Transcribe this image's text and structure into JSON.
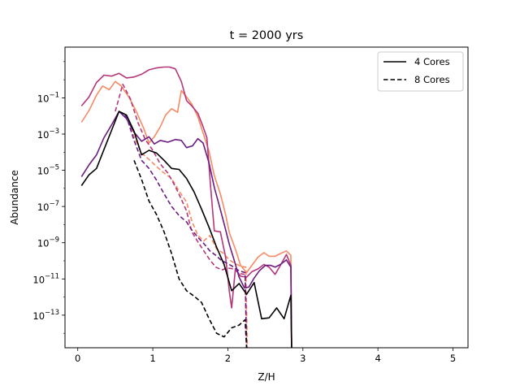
{
  "chart_data": {
    "type": "line",
    "title": "t = 2000 yrs",
    "xlabel": "Z/H",
    "ylabel": "Abundance",
    "xlim": [
      -0.17,
      5.2
    ],
    "ylim_log10": [
      -14.8,
      1.8
    ],
    "yscale": "log",
    "x_ticks": [
      {
        "value": 0,
        "label": "0"
      },
      {
        "value": 1,
        "label": "1"
      },
      {
        "value": 2,
        "label": "2"
      },
      {
        "value": 3,
        "label": "3"
      },
      {
        "value": 4,
        "label": "4"
      },
      {
        "value": 5,
        "label": "5"
      }
    ],
    "y_ticks": [
      {
        "exp": -1,
        "base": "10",
        "sup": "−1"
      },
      {
        "exp": -3,
        "base": "10",
        "sup": "−3"
      },
      {
        "exp": -5,
        "base": "10",
        "sup": "−5"
      },
      {
        "exp": -7,
        "base": "10",
        "sup": "−7"
      },
      {
        "exp": -9,
        "base": "10",
        "sup": "−9"
      },
      {
        "exp": -11,
        "base": "10",
        "sup": "−11"
      },
      {
        "exp": -13,
        "base": "10",
        "sup": "−13"
      }
    ],
    "grid": false,
    "legend": {
      "position": "top-right",
      "entries": [
        {
          "label": "4 Cores",
          "style": "solid",
          "color": "#000000"
        },
        {
          "label": "8 Cores",
          "style": "dashed",
          "color": "#000000"
        }
      ]
    },
    "series": [
      {
        "color": "#f78a64",
        "style": "solid",
        "points": [
          [
            0.05,
            -2.35
          ],
          [
            0.15,
            -1.7
          ],
          [
            0.25,
            -0.85
          ],
          [
            0.33,
            -0.35
          ],
          [
            0.42,
            -0.55
          ],
          [
            0.5,
            -0.1
          ],
          [
            0.58,
            -0.35
          ],
          [
            0.68,
            -0.95
          ],
          [
            0.78,
            -1.75
          ],
          [
            0.88,
            -2.7
          ],
          [
            0.95,
            -3.5
          ],
          [
            1.02,
            -3.15
          ],
          [
            1.1,
            -2.6
          ],
          [
            1.17,
            -1.95
          ],
          [
            1.25,
            -1.6
          ],
          [
            1.33,
            -1.8
          ],
          [
            1.38,
            -0.6
          ],
          [
            1.45,
            -0.95
          ],
          [
            1.52,
            -1.35
          ],
          [
            1.6,
            -2.05
          ],
          [
            1.67,
            -2.95
          ],
          [
            1.75,
            -3.95
          ],
          [
            1.82,
            -5.3
          ],
          [
            1.9,
            -6.3
          ],
          [
            1.97,
            -7.45
          ],
          [
            2.02,
            -8.45
          ],
          [
            2.1,
            -9.35
          ],
          [
            2.17,
            -10.25
          ],
          [
            2.25,
            -10.65
          ],
          [
            2.32,
            -10.25
          ],
          [
            2.4,
            -9.8
          ],
          [
            2.48,
            -9.55
          ],
          [
            2.55,
            -9.75
          ],
          [
            2.63,
            -9.75
          ],
          [
            2.7,
            -9.6
          ],
          [
            2.78,
            -9.45
          ],
          [
            2.84,
            -9.7
          ],
          [
            2.85,
            -14.8
          ]
        ]
      },
      {
        "color": "#f78a64",
        "style": "dashed",
        "points": [
          [
            0.55,
            -1.75
          ],
          [
            0.65,
            -2.05
          ],
          [
            0.75,
            -3.15
          ],
          [
            0.85,
            -4.05
          ],
          [
            0.95,
            -4.4
          ],
          [
            1.05,
            -4.8
          ],
          [
            1.15,
            -5.15
          ],
          [
            1.25,
            -5.45
          ],
          [
            1.35,
            -6.15
          ],
          [
            1.45,
            -6.75
          ],
          [
            1.52,
            -7.8
          ],
          [
            1.6,
            -8.6
          ],
          [
            1.68,
            -8.9
          ],
          [
            1.76,
            -8.6
          ],
          [
            1.85,
            -9.35
          ],
          [
            1.93,
            -9.55
          ],
          [
            2.02,
            -9.95
          ],
          [
            2.1,
            -10.15
          ],
          [
            2.17,
            -10.3
          ],
          [
            2.24,
            -10.35
          ],
          [
            2.26,
            -14.8
          ]
        ]
      },
      {
        "color": "#b63679",
        "style": "solid",
        "points": [
          [
            0.05,
            -1.45
          ],
          [
            0.15,
            -0.95
          ],
          [
            0.25,
            -0.15
          ],
          [
            0.35,
            0.25
          ],
          [
            0.45,
            0.2
          ],
          [
            0.55,
            0.35
          ],
          [
            0.65,
            0.1
          ],
          [
            0.75,
            0.15
          ],
          [
            0.85,
            0.3
          ],
          [
            0.95,
            0.55
          ],
          [
            1.05,
            0.65
          ],
          [
            1.15,
            0.7
          ],
          [
            1.22,
            0.7
          ],
          [
            1.3,
            0.6
          ],
          [
            1.38,
            -0.1
          ],
          [
            1.45,
            -1.15
          ],
          [
            1.52,
            -1.45
          ],
          [
            1.6,
            -1.85
          ],
          [
            1.67,
            -2.6
          ],
          [
            1.72,
            -3.2
          ],
          [
            1.77,
            -5.9
          ],
          [
            1.82,
            -8.35
          ],
          [
            1.9,
            -8.4
          ],
          [
            1.97,
            -9.8
          ],
          [
            2.02,
            -11.7
          ],
          [
            2.05,
            -12.6
          ],
          [
            2.1,
            -10.45
          ],
          [
            2.17,
            -10.85
          ],
          [
            2.25,
            -10.9
          ],
          [
            2.32,
            -10.6
          ],
          [
            2.4,
            -10.45
          ],
          [
            2.48,
            -10.2
          ],
          [
            2.55,
            -10.35
          ],
          [
            2.63,
            -10.75
          ],
          [
            2.7,
            -10.25
          ],
          [
            2.78,
            -9.65
          ],
          [
            2.84,
            -10.25
          ],
          [
            2.85,
            -14.8
          ]
        ]
      },
      {
        "color": "#b63679",
        "style": "dashed",
        "points": [
          [
            0.5,
            -1.75
          ],
          [
            0.6,
            -0.25
          ],
          [
            0.7,
            -1.05
          ],
          [
            0.8,
            -2.35
          ],
          [
            0.9,
            -3.3
          ],
          [
            1.0,
            -3.9
          ],
          [
            1.1,
            -4.65
          ],
          [
            1.2,
            -5.15
          ],
          [
            1.3,
            -5.9
          ],
          [
            1.38,
            -6.6
          ],
          [
            1.45,
            -7.25
          ],
          [
            1.52,
            -8.4
          ],
          [
            1.6,
            -8.95
          ],
          [
            1.68,
            -9.45
          ],
          [
            1.76,
            -9.95
          ],
          [
            1.84,
            -10.35
          ],
          [
            1.92,
            -10.5
          ],
          [
            2.0,
            -10.4
          ],
          [
            2.08,
            -10.45
          ],
          [
            2.15,
            -10.7
          ],
          [
            2.23,
            -10.75
          ],
          [
            2.25,
            -14.8
          ]
        ]
      },
      {
        "color": "#6a1c81",
        "style": "solid",
        "points": [
          [
            0.05,
            -5.35
          ],
          [
            0.15,
            -4.7
          ],
          [
            0.25,
            -4.15
          ],
          [
            0.35,
            -3.2
          ],
          [
            0.45,
            -2.5
          ],
          [
            0.55,
            -1.75
          ],
          [
            0.65,
            -2.15
          ],
          [
            0.75,
            -2.9
          ],
          [
            0.85,
            -3.4
          ],
          [
            0.95,
            -3.15
          ],
          [
            1.02,
            -3.55
          ],
          [
            1.1,
            -3.35
          ],
          [
            1.2,
            -3.45
          ],
          [
            1.3,
            -3.3
          ],
          [
            1.38,
            -3.35
          ],
          [
            1.45,
            -3.75
          ],
          [
            1.53,
            -3.65
          ],
          [
            1.6,
            -3.25
          ],
          [
            1.67,
            -3.5
          ],
          [
            1.75,
            -4.6
          ],
          [
            1.82,
            -5.95
          ],
          [
            1.88,
            -6.85
          ],
          [
            1.95,
            -7.95
          ],
          [
            2.02,
            -9.1
          ],
          [
            2.08,
            -9.9
          ],
          [
            2.15,
            -10.9
          ],
          [
            2.22,
            -11.5
          ],
          [
            2.28,
            -11.45
          ],
          [
            2.35,
            -10.95
          ],
          [
            2.42,
            -10.55
          ],
          [
            2.5,
            -10.25
          ],
          [
            2.57,
            -10.25
          ],
          [
            2.63,
            -10.35
          ],
          [
            2.7,
            -10.2
          ],
          [
            2.78,
            -9.95
          ],
          [
            2.84,
            -10.35
          ],
          [
            2.85,
            -14.8
          ]
        ]
      },
      {
        "color": "#6a1c81",
        "style": "dashed",
        "points": [
          [
            0.55,
            -1.75
          ],
          [
            0.65,
            -2.05
          ],
          [
            0.75,
            -3.35
          ],
          [
            0.85,
            -4.45
          ],
          [
            0.95,
            -4.9
          ],
          [
            1.05,
            -5.55
          ],
          [
            1.15,
            -6.3
          ],
          [
            1.25,
            -7.0
          ],
          [
            1.35,
            -7.5
          ],
          [
            1.45,
            -7.85
          ],
          [
            1.52,
            -8.3
          ],
          [
            1.6,
            -8.7
          ],
          [
            1.68,
            -9.05
          ],
          [
            1.76,
            -9.45
          ],
          [
            1.84,
            -9.7
          ],
          [
            1.92,
            -10.0
          ],
          [
            2.0,
            -10.15
          ],
          [
            2.08,
            -10.35
          ],
          [
            2.15,
            -10.55
          ],
          [
            2.23,
            -10.65
          ],
          [
            2.25,
            -14.8
          ]
        ]
      },
      {
        "color": "#000000",
        "style": "solid",
        "points": [
          [
            0.05,
            -5.85
          ],
          [
            0.15,
            -5.25
          ],
          [
            0.25,
            -4.9
          ],
          [
            0.35,
            -3.85
          ],
          [
            0.45,
            -2.8
          ],
          [
            0.55,
            -1.75
          ],
          [
            0.65,
            -1.95
          ],
          [
            0.75,
            -2.85
          ],
          [
            0.85,
            -4.15
          ],
          [
            0.95,
            -3.9
          ],
          [
            1.05,
            -4.05
          ],
          [
            1.15,
            -4.45
          ],
          [
            1.25,
            -4.9
          ],
          [
            1.35,
            -4.95
          ],
          [
            1.45,
            -5.45
          ],
          [
            1.55,
            -6.2
          ],
          [
            1.65,
            -7.15
          ],
          [
            1.75,
            -8.15
          ],
          [
            1.85,
            -9.25
          ],
          [
            1.95,
            -10.2
          ],
          [
            2.05,
            -11.65
          ],
          [
            2.15,
            -11.25
          ],
          [
            2.25,
            -11.85
          ],
          [
            2.35,
            -11.2
          ],
          [
            2.45,
            -13.2
          ],
          [
            2.55,
            -13.15
          ],
          [
            2.65,
            -12.6
          ],
          [
            2.75,
            -13.2
          ],
          [
            2.84,
            -11.9
          ],
          [
            2.85,
            -14.8
          ]
        ]
      },
      {
        "color": "#000000",
        "style": "dashed",
        "points": [
          [
            0.75,
            -4.45
          ],
          [
            0.85,
            -5.5
          ],
          [
            0.95,
            -6.7
          ],
          [
            1.05,
            -7.45
          ],
          [
            1.15,
            -8.4
          ],
          [
            1.25,
            -9.6
          ],
          [
            1.35,
            -11.0
          ],
          [
            1.45,
            -11.65
          ],
          [
            1.55,
            -11.95
          ],
          [
            1.65,
            -12.3
          ],
          [
            1.75,
            -13.2
          ],
          [
            1.85,
            -14.0
          ],
          [
            1.95,
            -14.2
          ],
          [
            2.05,
            -13.7
          ],
          [
            2.15,
            -13.55
          ],
          [
            2.23,
            -13.25
          ],
          [
            2.25,
            -14.8
          ]
        ]
      }
    ]
  }
}
